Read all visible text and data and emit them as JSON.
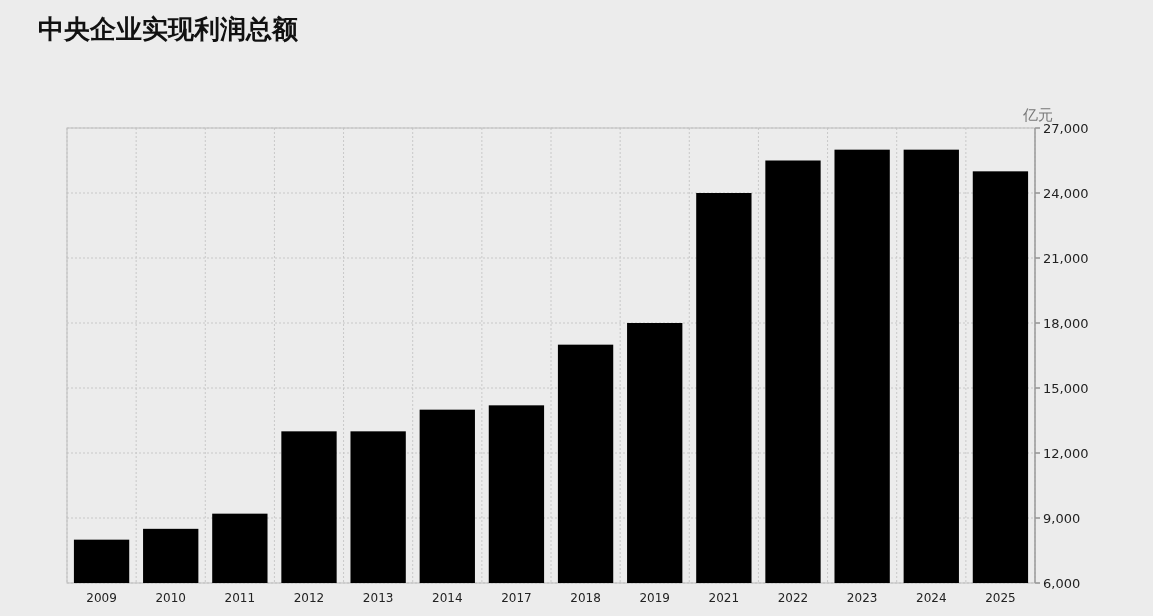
{
  "chart_data": {
    "type": "bar",
    "title": "中央企业实现利润总额",
    "ylabel": "亿元",
    "categories": [
      "2009",
      "2010",
      "2011",
      "2012",
      "2013",
      "2014",
      "2017",
      "2018",
      "2019",
      "2021",
      "2022",
      "2023",
      "2024",
      "2025"
    ],
    "values": [
      8000,
      8500,
      9200,
      13000,
      13000,
      14000,
      14200,
      17000,
      18000,
      24000,
      25500,
      26000,
      26000,
      25000
    ],
    "color": "#000000",
    "ylim": [
      6000,
      27000
    ],
    "yticks": [
      {
        "value": 6000,
        "label": "6,000"
      },
      {
        "value": 9000,
        "label": "9,000"
      },
      {
        "value": 12000,
        "label": "12,000"
      },
      {
        "value": 15000,
        "label": "15,000"
      },
      {
        "value": 18000,
        "label": "18,000"
      },
      {
        "value": 21000,
        "label": "21,000"
      },
      {
        "value": 24000,
        "label": "24,000"
      },
      {
        "value": 27000,
        "label": "27,000"
      }
    ],
    "grid": true
  }
}
